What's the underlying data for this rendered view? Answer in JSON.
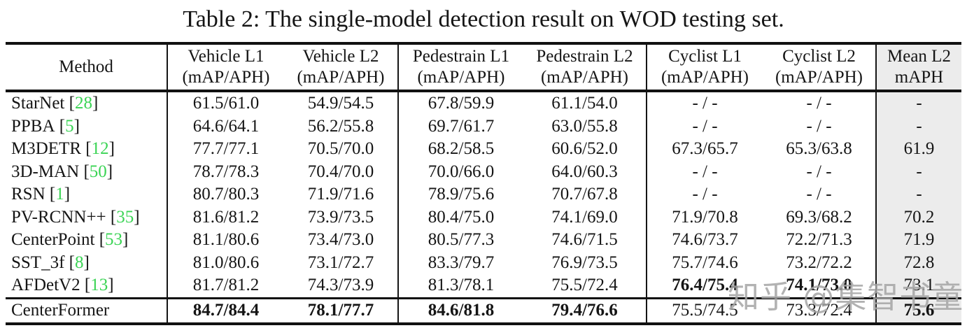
{
  "title": "Table 2: The single-model detection result on WOD testing set.",
  "watermark": "知乎 @集智书童",
  "colors": {
    "citation_green": "#3BD455",
    "mean_column_bg": "#ECECEC",
    "watermark_gray": "rgba(165,165,165,0.85)",
    "rule_black": "#111111"
  },
  "table": {
    "header": [
      {
        "line1": "Method",
        "line2": ""
      },
      {
        "line1": "Vehicle L1",
        "line2": "(mAP/APH)"
      },
      {
        "line1": "Vehicle L2",
        "line2": "(mAP/APH)"
      },
      {
        "line1": "Pedestrain L1",
        "line2": "(mAP/APH)"
      },
      {
        "line1": "Pedestrain L2",
        "line2": "(mAP/APH)"
      },
      {
        "line1": "Cyclist L1",
        "line2": "(mAP/APH)"
      },
      {
        "line1": "Cyclist L2",
        "line2": "(mAP/APH)"
      },
      {
        "line1": "Mean L2",
        "line2": "mAPH"
      }
    ],
    "rows": [
      {
        "method": "StarNet",
        "ref": "28",
        "values": [
          "61.5/61.0",
          "54.9/54.5",
          "67.8/59.9",
          "61.1/54.0",
          "- / -",
          "- / -",
          "-"
        ],
        "bold": [
          false,
          false,
          false,
          false,
          false,
          false,
          false
        ]
      },
      {
        "method": "PPBA",
        "ref": "5",
        "values": [
          "64.6/64.1",
          "56.2/55.8",
          "69.7/61.7",
          "63.0/55.8",
          "- / -",
          "- / -",
          "-"
        ],
        "bold": [
          false,
          false,
          false,
          false,
          false,
          false,
          false
        ]
      },
      {
        "method": "M3DETR",
        "ref": "12",
        "values": [
          "77.7/77.1",
          "70.5/70.0",
          "68.2/58.5",
          "60.6/52.0",
          "67.3/65.7",
          "65.3/63.8",
          "61.9"
        ],
        "bold": [
          false,
          false,
          false,
          false,
          false,
          false,
          false
        ]
      },
      {
        "method": "3D-MAN",
        "ref": "50",
        "values": [
          "78.7/78.3",
          "70.4/70.0",
          "70.0/66.0",
          "64.0/60.3",
          "- / -",
          "- / -",
          "-"
        ],
        "bold": [
          false,
          false,
          false,
          false,
          false,
          false,
          false
        ]
      },
      {
        "method": "RSN",
        "ref": "1",
        "values": [
          "80.7/80.3",
          "71.9/71.6",
          "78.9/75.6",
          "70.7/67.8",
          "- / -",
          "- / -",
          "-"
        ],
        "bold": [
          false,
          false,
          false,
          false,
          false,
          false,
          false
        ]
      },
      {
        "method": "PV-RCNN++",
        "ref": "35",
        "values": [
          "81.6/81.2",
          "73.9/73.5",
          "80.4/75.0",
          "74.1/69.0",
          "71.9/70.8",
          "69.3/68.2",
          "70.2"
        ],
        "bold": [
          false,
          false,
          false,
          false,
          false,
          false,
          false
        ]
      },
      {
        "method": "CenterPoint",
        "ref": "53",
        "values": [
          "81.1/80.6",
          "73.4/73.0",
          "80.5/77.3",
          "74.6/71.5",
          "74.6/73.7",
          "72.2/71.3",
          "71.9"
        ],
        "bold": [
          false,
          false,
          false,
          false,
          false,
          false,
          false
        ]
      },
      {
        "method": "SST_3f",
        "ref": "8",
        "values": [
          "81.0/80.6",
          "73.1/72.7",
          "83.3/79.7",
          "76.9/73.5",
          "75.7/74.6",
          "73.2/72.2",
          "72.8"
        ],
        "bold": [
          false,
          false,
          false,
          false,
          false,
          false,
          false
        ]
      },
      {
        "method": "AFDetV2",
        "ref": "13",
        "values": [
          "81.7/81.2",
          "74.3/73.9",
          "81.3/78.1",
          "75.5/72.4",
          "76.4/75.4",
          "74.1/73.0",
          "73.1"
        ],
        "bold": [
          false,
          false,
          false,
          false,
          true,
          true,
          false
        ]
      }
    ],
    "final_row": {
      "method": "CenterFormer",
      "ref": null,
      "values": [
        "84.7/84.4",
        "78.1/77.7",
        "84.6/81.8",
        "79.4/76.6",
        "75.5/74.5",
        "73.3/72.4",
        "75.6"
      ],
      "bold": [
        true,
        true,
        true,
        true,
        false,
        false,
        true
      ]
    }
  }
}
